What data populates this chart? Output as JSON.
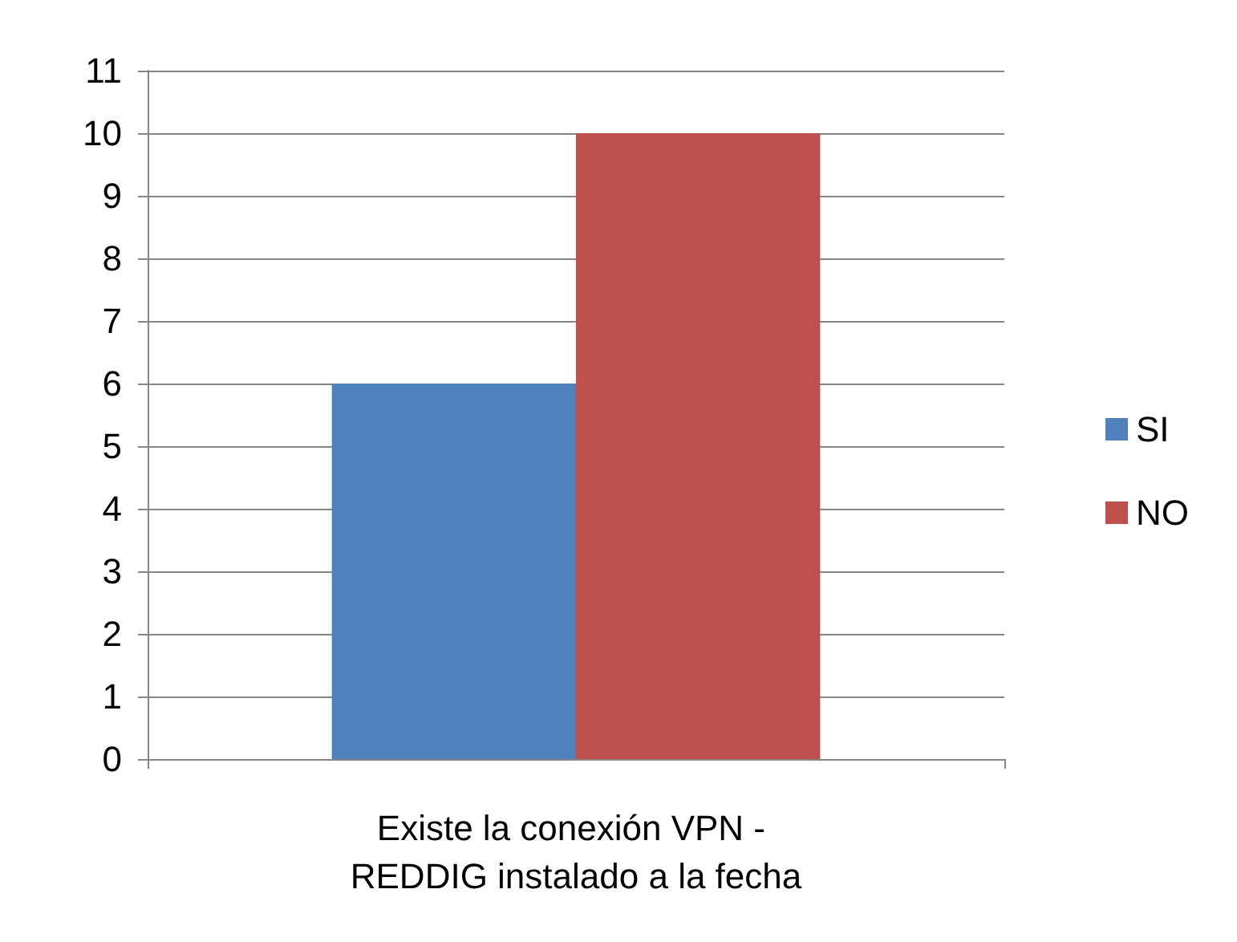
{
  "chart_data": {
    "type": "bar",
    "categories": [
      "Existe la conexión VPN - REDDIG instalado a la fecha"
    ],
    "series": [
      {
        "name": "SI",
        "color": "#4f81bd",
        "values": [
          6
        ]
      },
      {
        "name": "NO",
        "color": "#c0504d",
        "values": [
          10
        ]
      }
    ],
    "ylim": [
      0,
      11
    ],
    "yticks": [
      0,
      1,
      2,
      3,
      4,
      5,
      6,
      7,
      8,
      9,
      10,
      11
    ],
    "grid": "y",
    "legend": "right"
  }
}
